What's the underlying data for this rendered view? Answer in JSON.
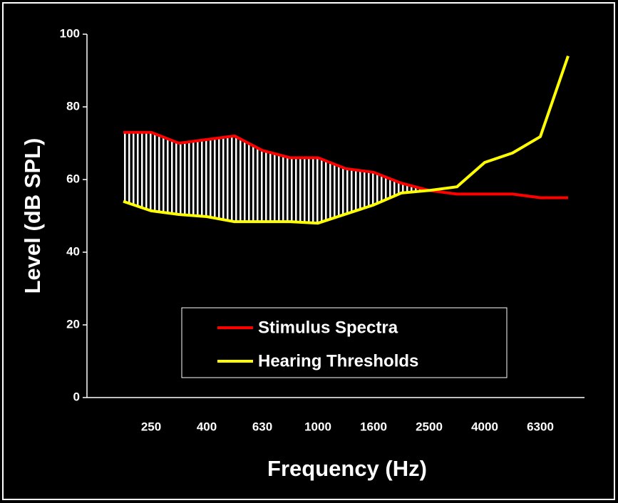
{
  "chart_data": {
    "type": "line",
    "x_label": "Frequency (Hz)",
    "y_label": "Level (dB SPL)",
    "categories": [
      null,
      "250",
      null,
      "400",
      null,
      "630",
      null,
      "1000",
      null,
      "1600",
      null,
      "2500",
      null,
      "4000",
      null,
      "6300",
      null
    ],
    "series": [
      {
        "name": "Stimulus Spectra",
        "color": "#ff0000",
        "values": [
          73,
          73,
          70,
          71,
          72,
          68,
          66,
          66,
          63,
          62,
          59,
          57,
          56,
          56,
          56,
          55,
          55
        ]
      },
      {
        "name": "Hearing Thresholds",
        "color": "#ffff00",
        "values": [
          54,
          51.4,
          50.4,
          49.8,
          48.4,
          48.4,
          48.4,
          48,
          50.5,
          53,
          56.3,
          57,
          58,
          64.7,
          67.3,
          71.8,
          94
        ]
      }
    ],
    "ylim": [
      0,
      100
    ],
    "yticks": [
      0,
      20,
      40,
      60,
      80,
      100
    ],
    "shade_between_series": true,
    "legend": "lower-center"
  }
}
